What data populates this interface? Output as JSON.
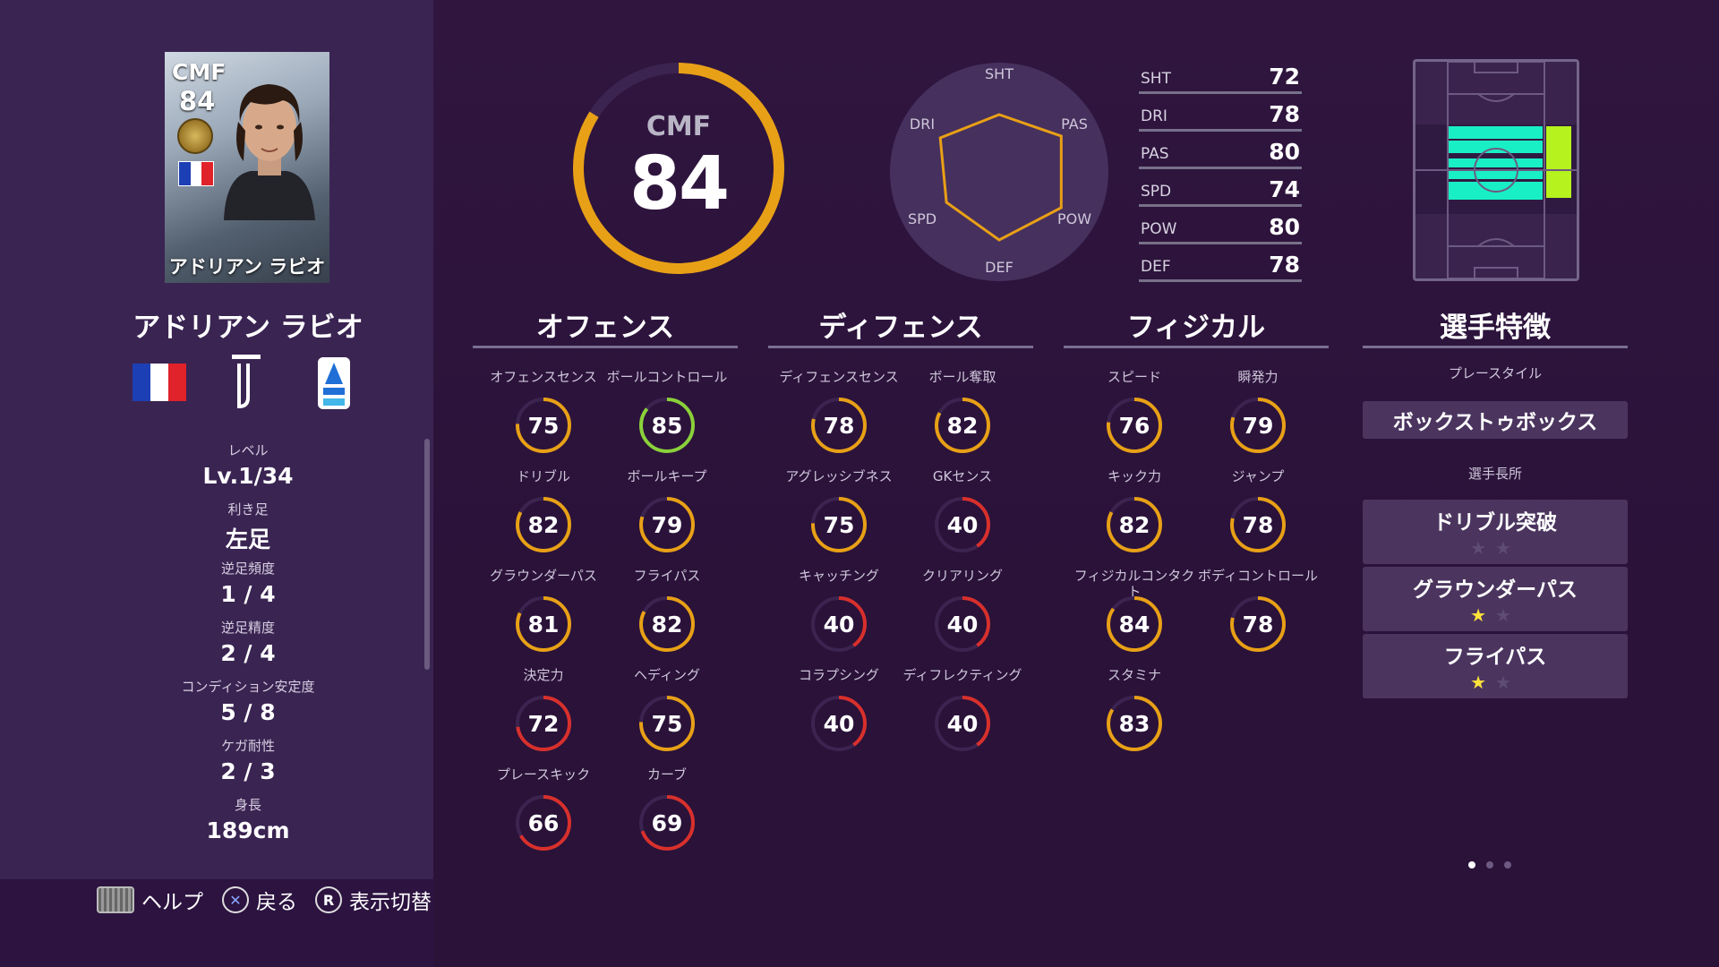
{
  "card": {
    "position": "CMF",
    "overall": "84",
    "name": "アドリアン ラビオ"
  },
  "player": {
    "name": "アドリアン ラビオ"
  },
  "info": [
    {
      "label": "レベル",
      "value": "Lv.1/34"
    },
    {
      "label": "利き足",
      "value": "左足"
    },
    {
      "label": "逆足頻度",
      "value": "1 / 4"
    },
    {
      "label": "逆足精度",
      "value": "2 / 4"
    },
    {
      "label": "コンディション安定度",
      "value": "5 / 8"
    },
    {
      "label": "ケガ耐性",
      "value": "2 / 3"
    },
    {
      "label": "身長",
      "value": "189cm"
    }
  ],
  "overall": {
    "position": "CMF",
    "value": "84",
    "ring_fraction": 0.84
  },
  "radar_labels": {
    "sht": "SHT",
    "pas": "PAS",
    "pow": "POW",
    "def": "DEF",
    "spd": "SPD",
    "dri": "DRI"
  },
  "summary": [
    {
      "label": "SHT",
      "value": 72
    },
    {
      "label": "DRI",
      "value": 78
    },
    {
      "label": "PAS",
      "value": 80
    },
    {
      "label": "SPD",
      "value": 74
    },
    {
      "label": "POW",
      "value": 80
    },
    {
      "label": "DEF",
      "value": 78
    }
  ],
  "sections": {
    "offense": {
      "title": "オフェンス",
      "stats": [
        {
          "label": "オフェンスセンス",
          "value": 75
        },
        {
          "label": "ボールコントロール",
          "value": 85
        },
        {
          "label": "ドリブル",
          "value": 82
        },
        {
          "label": "ボールキープ",
          "value": 79
        },
        {
          "label": "グラウンダーパス",
          "value": 81
        },
        {
          "label": "フライパス",
          "value": 82
        },
        {
          "label": "決定力",
          "value": 72
        },
        {
          "label": "ヘディング",
          "value": 75
        },
        {
          "label": "プレースキック",
          "value": 66
        },
        {
          "label": "カーブ",
          "value": 69
        }
      ]
    },
    "defense": {
      "title": "ディフェンス",
      "stats": [
        {
          "label": "ディフェンスセンス",
          "value": 78
        },
        {
          "label": "ボール奪取",
          "value": 82
        },
        {
          "label": "アグレッシブネス",
          "value": 75
        },
        {
          "label": "GKセンス",
          "value": 40
        },
        {
          "label": "キャッチング",
          "value": 40
        },
        {
          "label": "クリアリング",
          "value": 40
        },
        {
          "label": "コラプシング",
          "value": 40
        },
        {
          "label": "ディフレクティング",
          "value": 40
        }
      ]
    },
    "physical": {
      "title": "フィジカル",
      "stats": [
        {
          "label": "スピード",
          "value": 76
        },
        {
          "label": "瞬発力",
          "value": 79
        },
        {
          "label": "キック力",
          "value": 82
        },
        {
          "label": "ジャンプ",
          "value": 78
        },
        {
          "label": "フィジカルコンタクト",
          "value": 84
        },
        {
          "label": "ボディコントロール",
          "value": 78
        },
        {
          "label": "スタミナ",
          "value": 83
        }
      ]
    }
  },
  "traits": {
    "title": "選手特徴",
    "playstyle_label": "プレースタイル",
    "playstyle": "ボックストゥボックス",
    "skills_label": "選手長所",
    "skills": [
      {
        "name": "ドリブル突破",
        "stars": 0,
        "max": 2
      },
      {
        "name": "グラウンダーパス",
        "stars": 1,
        "max": 2
      },
      {
        "name": "フライパス",
        "stars": 1,
        "max": 2
      }
    ]
  },
  "footer": {
    "help": "ヘルプ",
    "back": "戻る",
    "switch": "表示切替",
    "switch_key": "R"
  },
  "pager": {
    "pages": 3,
    "current": 1
  },
  "colors": {
    "ring_orange": "#e8a016",
    "ring_green": "#8ad13a",
    "ring_red": "#d8302c",
    "pitch_cyan": "#19efc4",
    "pitch_lime": "#b6f21d",
    "star_on": "#ffe23a"
  }
}
